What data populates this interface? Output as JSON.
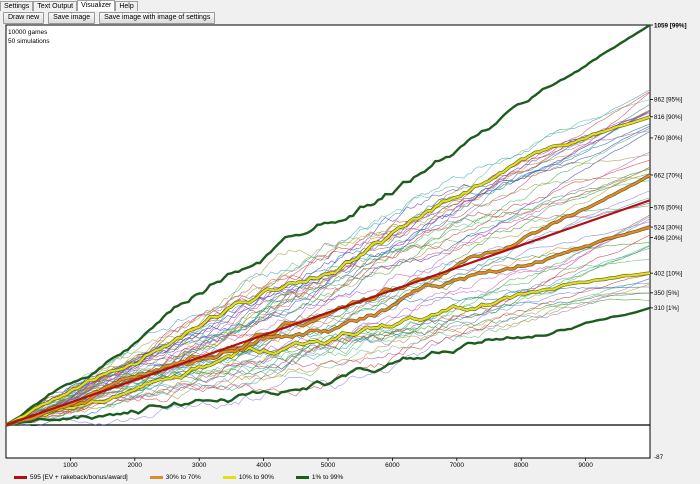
{
  "tabs": [
    {
      "label": "Settings",
      "active": false
    },
    {
      "label": "Text Output",
      "active": false
    },
    {
      "label": "Visualizer",
      "active": true
    },
    {
      "label": "Help",
      "active": false
    }
  ],
  "toolbar": {
    "draw_new": "Draw new",
    "save_image": "Save image",
    "save_with_settings": "Save image with image of settings"
  },
  "info": {
    "games": "10000 games",
    "sims": "50 simulations"
  },
  "legend": [
    {
      "label": "595 [EV + rakeback/bonus/award]",
      "color": "#b01010"
    },
    {
      "label": "30% to 70%",
      "color": "#e08a2a"
    },
    {
      "label": "10% to 90%",
      "color": "#e0e020"
    },
    {
      "label": "1% to 99%",
      "color": "#1c5c1c"
    }
  ],
  "chart_data": {
    "type": "line",
    "x_ticks": [
      1000,
      2000,
      3000,
      4000,
      5000,
      6000,
      7000,
      8000,
      9000
    ],
    "xlim": [
      0,
      10000
    ],
    "ylim": [
      -87,
      1059
    ],
    "bottom_right_label": "-87",
    "ev_final": 595,
    "percentile_labels": [
      {
        "value": 1059,
        "label": "1059 [99%]"
      },
      {
        "value": 862,
        "label": "862 [95%]"
      },
      {
        "value": 816,
        "label": "816 [90%]"
      },
      {
        "value": 760,
        "label": "760 [80%]"
      },
      {
        "value": 662,
        "label": "662 [70%]"
      },
      {
        "value": 576,
        "label": "576 [50%]"
      },
      {
        "value": 524,
        "label": "524 [30%]"
      },
      {
        "value": 496,
        "label": "496 [20%]"
      },
      {
        "value": 402,
        "label": "402 [10%]"
      },
      {
        "value": 350,
        "label": "350 [5%]"
      },
      {
        "value": 310,
        "label": "310 [1%]"
      }
    ],
    "bands": [
      {
        "name": "1% to 99%",
        "final_low": 310,
        "final_high": 1059,
        "color": "#1c5c1c"
      },
      {
        "name": "10% to 90%",
        "final_low": 402,
        "final_high": 816,
        "color": "#e0e020"
      },
      {
        "name": "30% to 70%",
        "final_low": 524,
        "final_high": 662,
        "color": "#e08a2a"
      }
    ],
    "simulations": 50,
    "games": 10000
  }
}
